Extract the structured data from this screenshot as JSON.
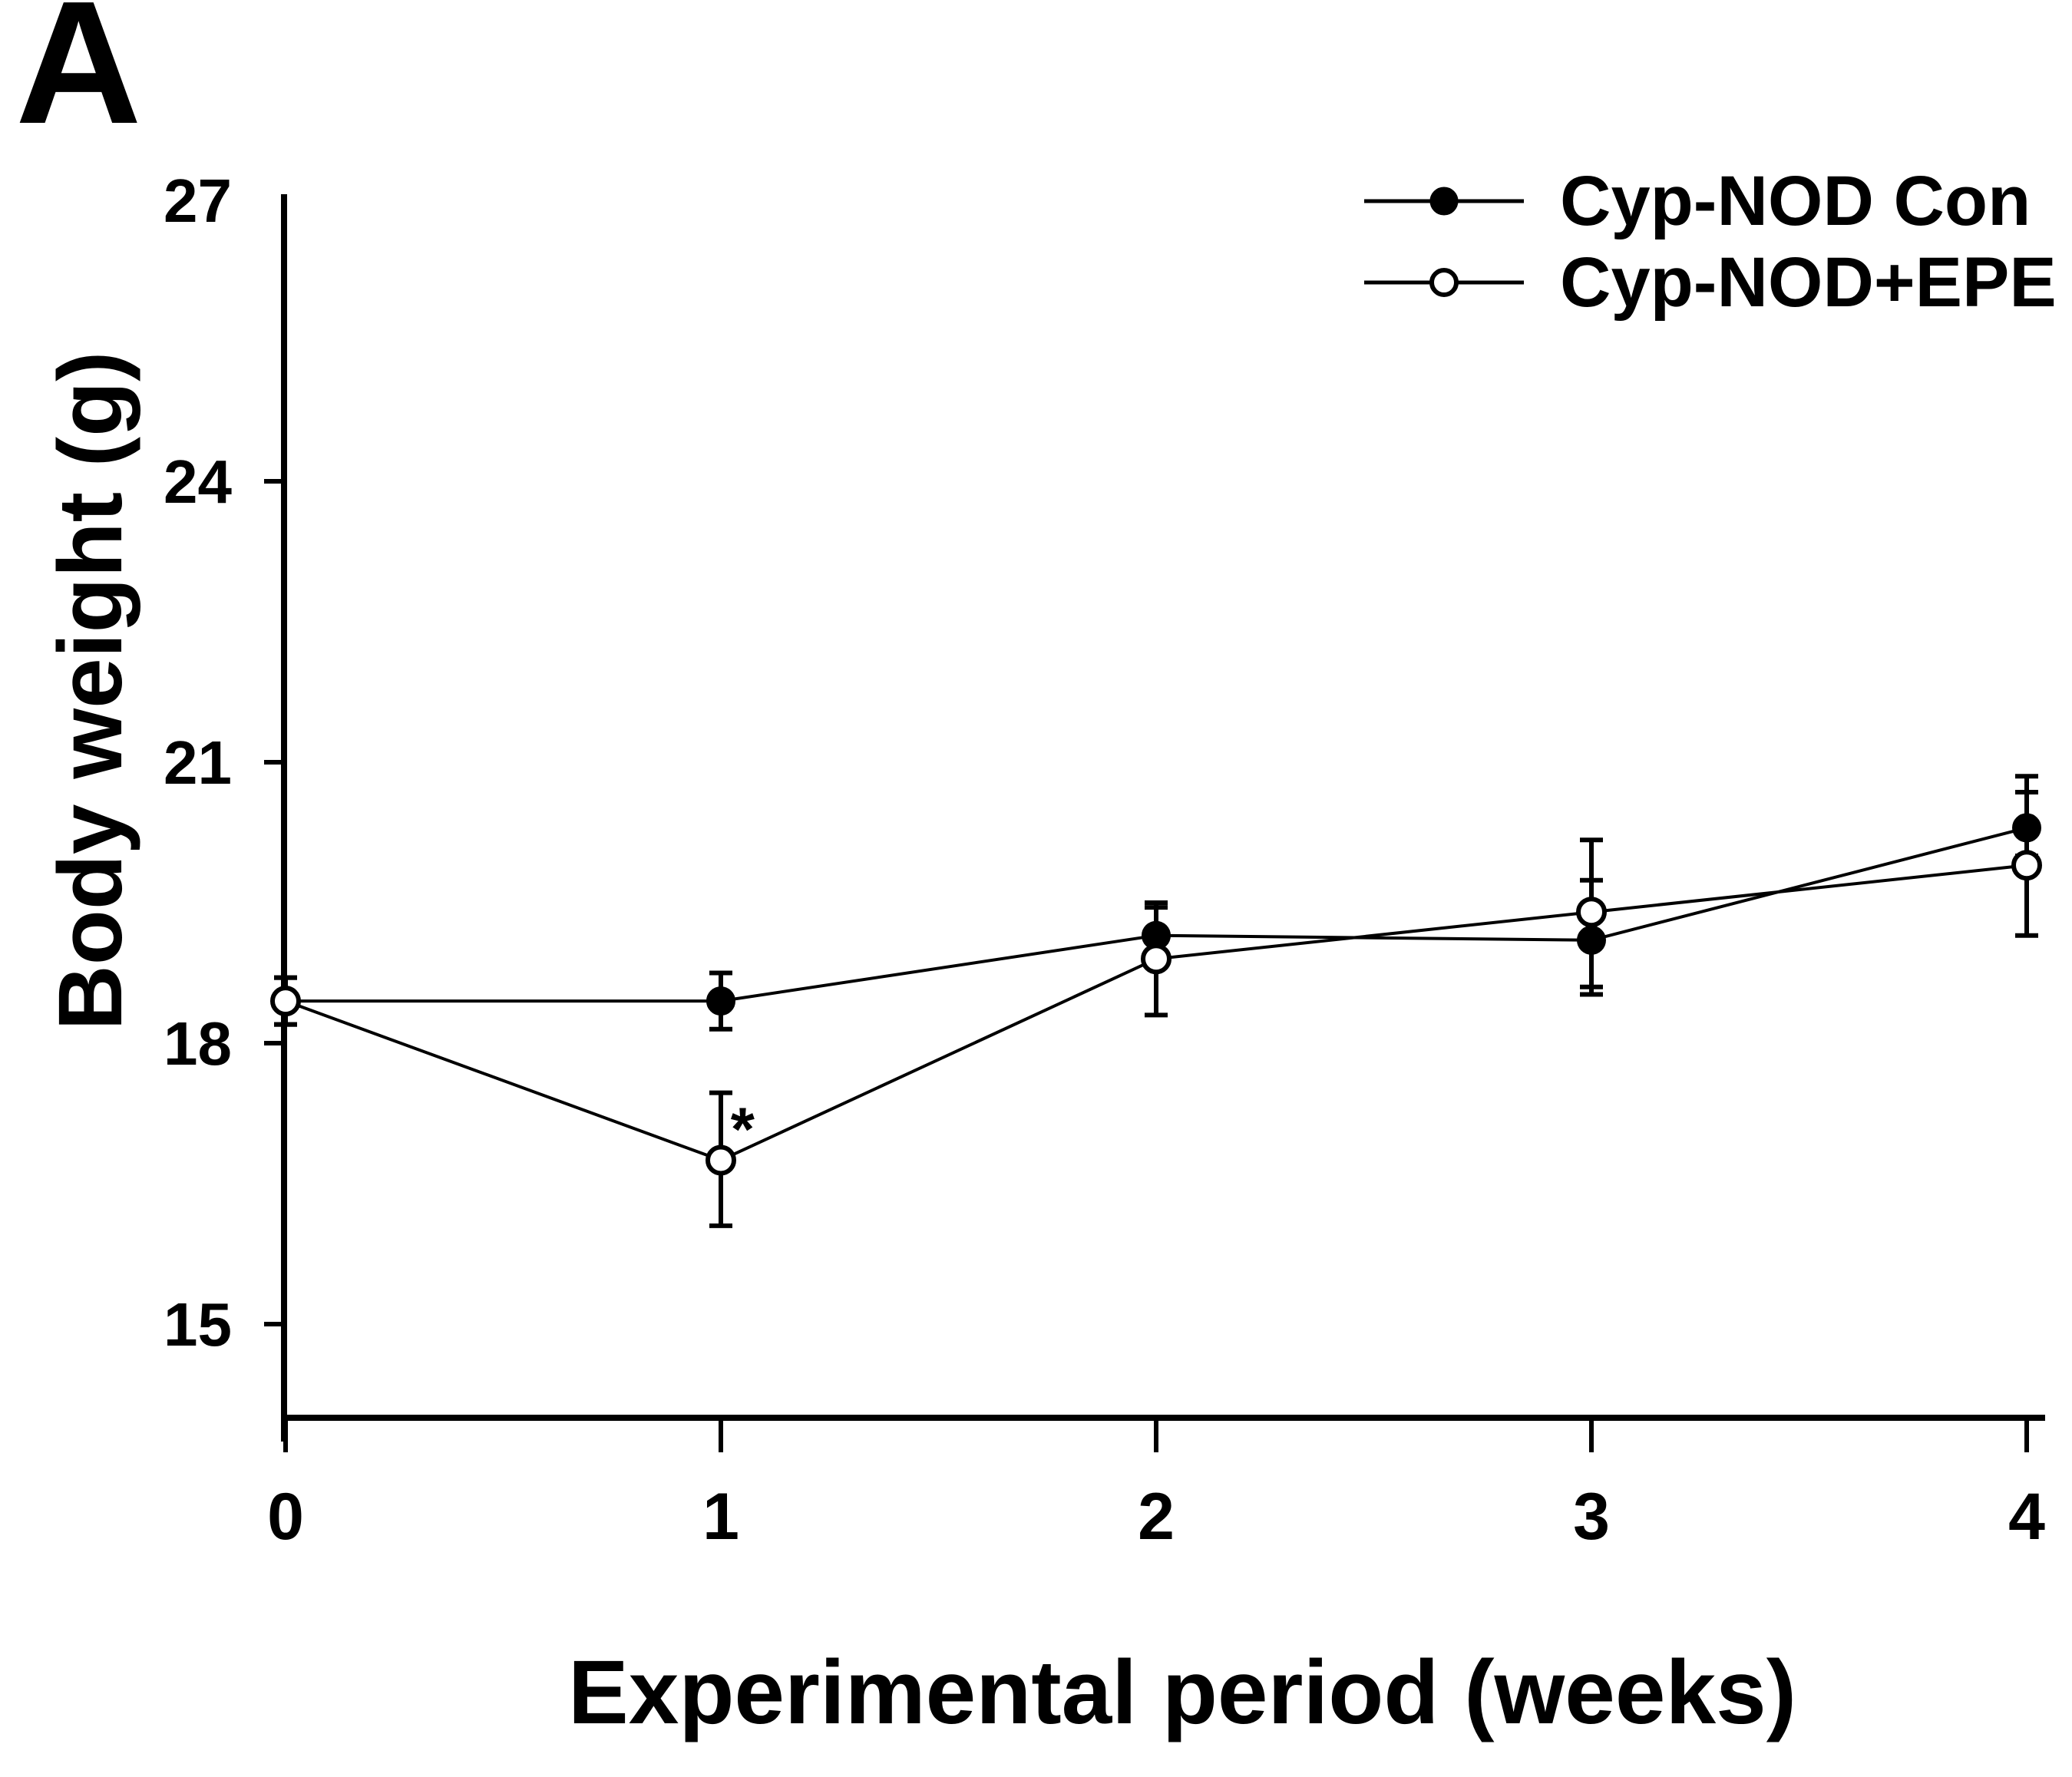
{
  "panel_label": "A",
  "colors": {
    "foreground": "#000000",
    "background": "#ffffff"
  },
  "y_axis": {
    "title": "Body weight (g)",
    "ticks": [
      {
        "label": "27",
        "value": 27,
        "has_tick_mark": false
      },
      {
        "label": "24",
        "value": 24,
        "has_tick_mark": true
      },
      {
        "label": "21",
        "value": 21,
        "has_tick_mark": true
      },
      {
        "label": "18",
        "value": 18,
        "has_tick_mark": true
      },
      {
        "label": "15",
        "value": 15,
        "has_tick_mark": true
      }
    ]
  },
  "x_axis": {
    "title": "Experimental period (weeks)",
    "ticks": [
      {
        "label": "0",
        "value": 0
      },
      {
        "label": "1",
        "value": 1
      },
      {
        "label": "2",
        "value": 2
      },
      {
        "label": "3",
        "value": 3
      },
      {
        "label": "4",
        "value": 4
      }
    ]
  },
  "legend": [
    {
      "label": "Cyp-NOD Con",
      "marker": "filled-circle"
    },
    {
      "label": "Cyp-NOD+EPE",
      "marker": "open-circle"
    }
  ],
  "chart_data": {
    "type": "line",
    "title": "",
    "xlabel": "Experimental period (weeks)",
    "ylabel": "Body weight (g)",
    "x": [
      0,
      1,
      2,
      3,
      4
    ],
    "xticks": [
      0,
      1,
      2,
      3,
      4
    ],
    "yticks": [
      15,
      18,
      21,
      24,
      27
    ],
    "xlim": [
      0,
      4
    ],
    "ylim": [
      14,
      27
    ],
    "grid": false,
    "legend_position": "top-right",
    "series": [
      {
        "name": "Cyp-NOD Con",
        "marker": "filled-circle",
        "color": "#000000",
        "values": [
          18.45,
          18.45,
          19.15,
          19.1,
          20.3
        ],
        "err_up": [
          0.25,
          0.3,
          0.3,
          0.64,
          0.55
        ],
        "err_down": [
          0.25,
          0.3,
          0.3,
          0.58,
          0.3
        ]
      },
      {
        "name": "Cyp-NOD+EPE",
        "marker": "open-circle",
        "color": "#000000",
        "values": [
          18.45,
          16.75,
          18.9,
          19.4,
          19.9
        ],
        "err_up": [
          0.25,
          0.72,
          0.6,
          0.77,
          0.78
        ],
        "err_down": [
          0.25,
          0.7,
          0.6,
          0.8,
          0.75
        ]
      }
    ],
    "annotations": [
      {
        "text": "*",
        "x": 1.05,
        "y": 17.2
      }
    ]
  }
}
